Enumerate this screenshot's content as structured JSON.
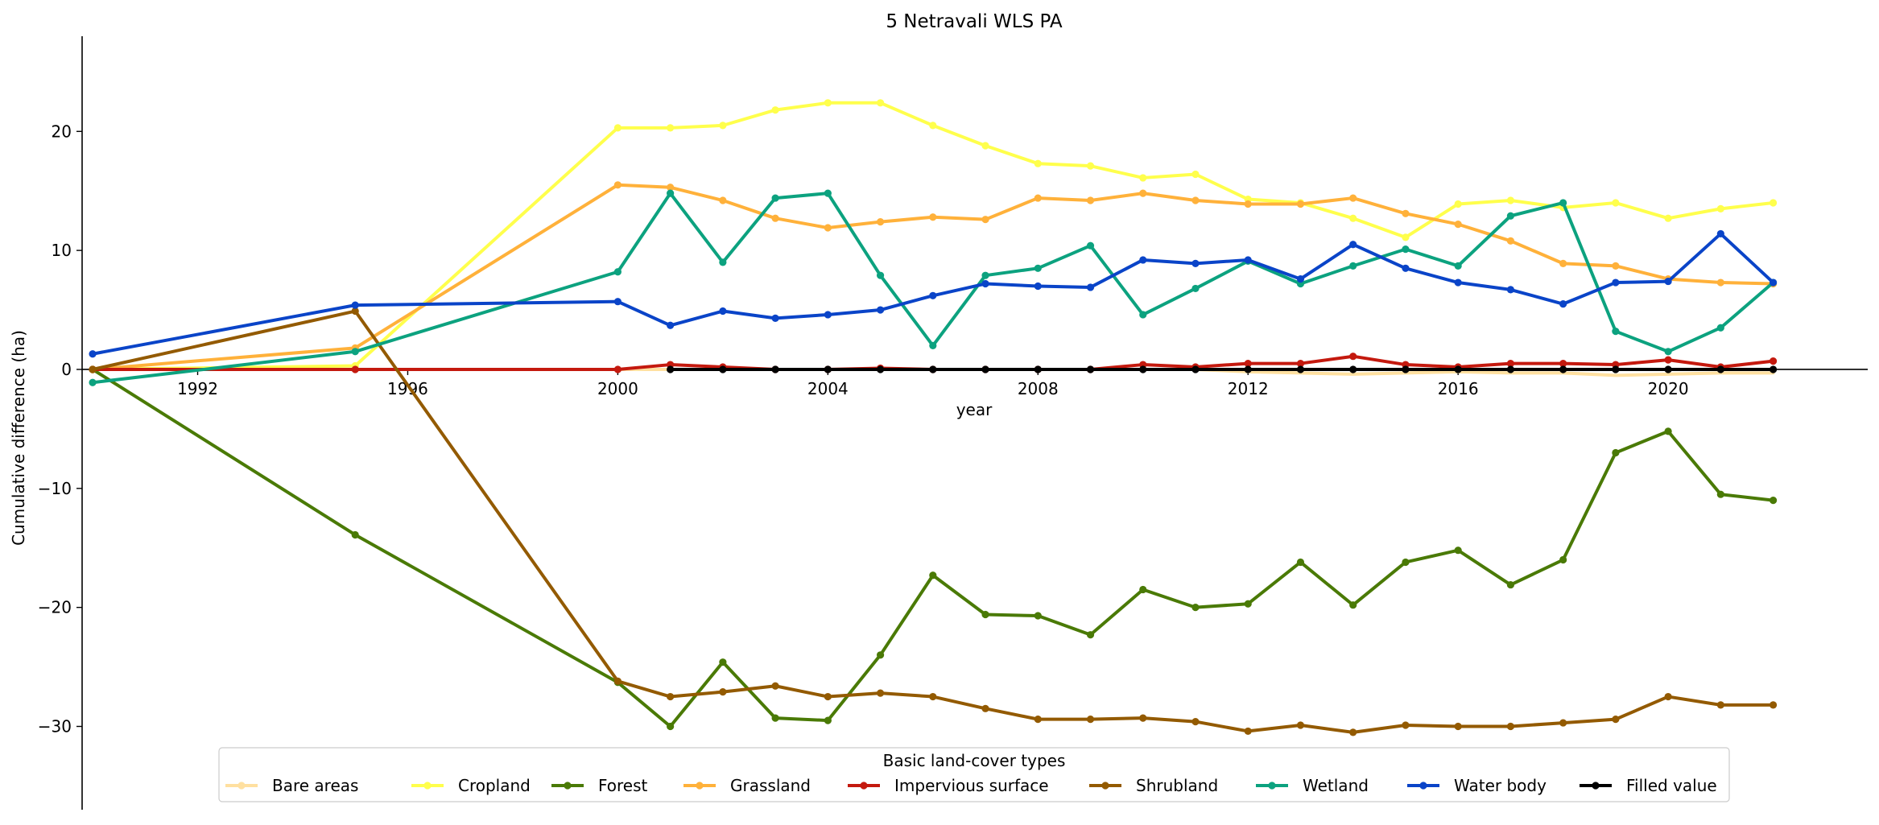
{
  "chart_data": {
    "type": "line",
    "title": "5 Netravali WLS PA",
    "xlabel": "year",
    "ylabel": "Cumulative difference (ha)",
    "xlim": [
      1989.8,
      2023.8
    ],
    "ylim": [
      -37,
      28
    ],
    "x_ticks": [
      1992,
      1996,
      2000,
      2004,
      2008,
      2012,
      2016,
      2020
    ],
    "y_ticks": [
      -30,
      -20,
      -10,
      0,
      10,
      20
    ],
    "y_tick_labels": [
      "−30",
      "−20",
      "−10",
      "0",
      "10",
      "20"
    ],
    "legend": {
      "title": "Basic land-cover types",
      "position": "lower-center"
    },
    "x": [
      1990,
      1995,
      2000,
      2001,
      2002,
      2003,
      2004,
      2005,
      2006,
      2007,
      2008,
      2009,
      2010,
      2011,
      2012,
      2013,
      2014,
      2015,
      2016,
      2017,
      2018,
      2019,
      2020,
      2021,
      2022
    ],
    "series": [
      {
        "name": "Bare areas",
        "color": "#ffe0a0",
        "marker": false,
        "values": [
          0,
          0,
          0,
          0,
          0,
          0,
          0,
          0,
          0,
          0,
          0,
          0,
          0,
          0,
          -0.2,
          -0.3,
          -0.4,
          -0.3,
          -0.2,
          -0.3,
          -0.3,
          -0.5,
          -0.4,
          -0.3,
          -0.3
        ]
      },
      {
        "name": "Cropland",
        "color": "#ffff4c",
        "marker": true,
        "values": [
          0,
          0.3,
          20.3,
          20.3,
          20.5,
          21.8,
          22.4,
          22.4,
          20.5,
          18.8,
          17.3,
          17.1,
          16.1,
          16.4,
          14.3,
          14.0,
          12.7,
          11.1,
          13.9,
          14.2,
          13.6,
          14.0,
          12.7,
          13.5,
          14.0
        ]
      },
      {
        "name": "Forest",
        "color": "#4a7a06",
        "marker": true,
        "values": [
          0,
          -13.9,
          -26.3,
          -30.0,
          -24.6,
          -29.3,
          -29.5,
          -24.0,
          -17.3,
          -20.6,
          -20.7,
          -22.3,
          -18.5,
          -20.0,
          -19.7,
          -16.2,
          -19.8,
          -16.2,
          -15.2,
          -18.1,
          -16.0,
          -7.0,
          -5.2,
          -10.5,
          -11.0
        ]
      },
      {
        "name": "Grassland",
        "color": "#ffb13a",
        "marker": true,
        "values": [
          0,
          1.8,
          15.5,
          15.3,
          14.2,
          12.7,
          11.9,
          12.4,
          12.8,
          12.6,
          14.4,
          14.2,
          14.8,
          14.2,
          13.9,
          13.9,
          14.4,
          13.1,
          12.2,
          10.8,
          8.9,
          8.7,
          7.6,
          7.3,
          7.2
        ]
      },
      {
        "name": "Impervious surface",
        "color": "#c4190e",
        "marker": true,
        "values": [
          0,
          0,
          0,
          0.4,
          0.2,
          0,
          0,
          0.1,
          0,
          0,
          0,
          0,
          0.4,
          0.2,
          0.5,
          0.5,
          1.1,
          0.4,
          0.2,
          0.5,
          0.5,
          0.4,
          0.8,
          0.2,
          0.7
        ]
      },
      {
        "name": "Shrubland",
        "color": "#935a00",
        "marker": true,
        "values": [
          0,
          4.9,
          -26.2,
          -27.5,
          -27.1,
          -26.6,
          -27.5,
          -27.2,
          -27.5,
          -28.5,
          -29.4,
          -29.4,
          -29.3,
          -29.6,
          -30.4,
          -29.9,
          -30.5,
          -29.9,
          -30.0,
          -30.0,
          -29.7,
          -29.4,
          -27.5,
          -28.2,
          -28.2
        ]
      },
      {
        "name": "Wetland",
        "color": "#0ca27f",
        "marker": true,
        "values": [
          -1.1,
          1.5,
          8.2,
          14.8,
          9.0,
          14.4,
          14.8,
          7.9,
          2.0,
          7.9,
          8.5,
          10.4,
          4.6,
          6.8,
          9.1,
          7.2,
          8.7,
          10.1,
          8.7,
          12.9,
          14.0,
          3.2,
          1.5,
          3.5,
          7.3
        ]
      },
      {
        "name": "Water body",
        "color": "#0a44c8",
        "marker": true,
        "values": [
          1.3,
          5.4,
          5.7,
          3.7,
          4.9,
          4.3,
          4.6,
          5.0,
          6.2,
          7.2,
          7.0,
          6.9,
          9.2,
          8.9,
          9.2,
          7.6,
          10.5,
          8.5,
          7.3,
          6.7,
          5.5,
          7.3,
          7.4,
          11.4,
          7.3
        ]
      },
      {
        "name": "Filled value",
        "color": "#000000",
        "marker": true,
        "values": [
          null,
          null,
          null,
          0,
          0,
          0,
          0,
          0,
          0,
          0,
          0,
          0,
          0,
          0,
          0,
          0,
          0,
          0,
          0,
          0,
          0,
          0,
          0,
          0,
          0
        ]
      }
    ]
  }
}
